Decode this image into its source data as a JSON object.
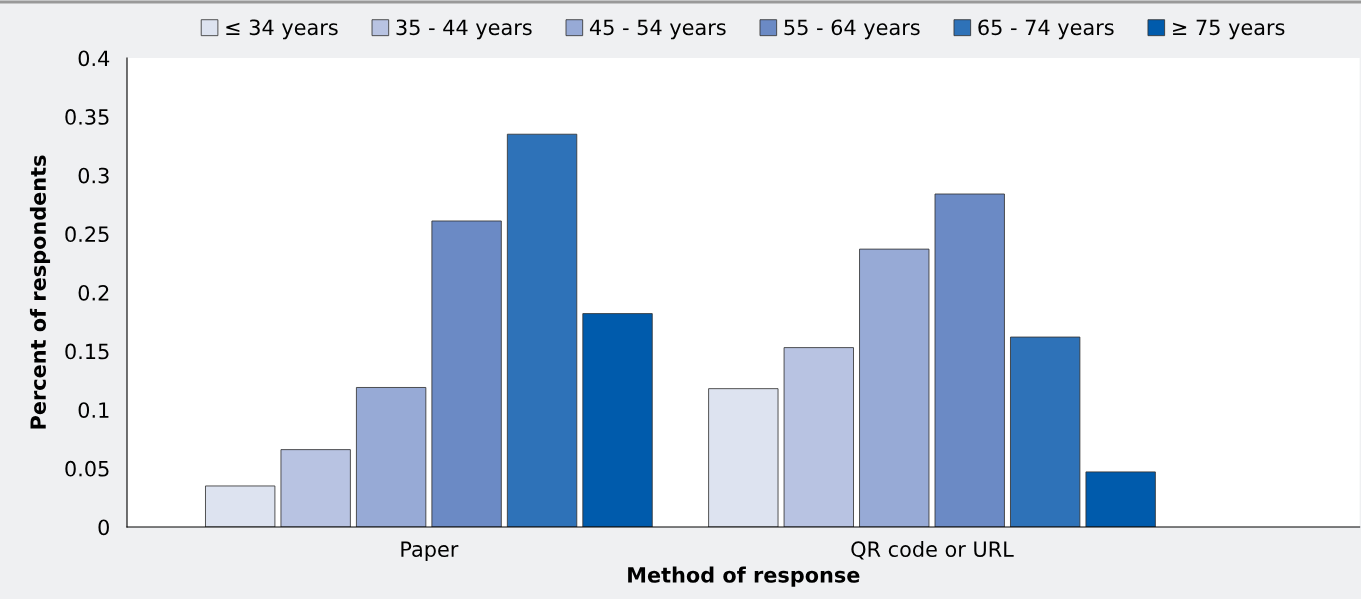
{
  "chart_data": {
    "type": "bar",
    "xlabel": "Method of response",
    "ylabel": "Percent of respondents",
    "categories": [
      "Paper",
      "QR code or URL"
    ],
    "series": [
      {
        "name": "≤ 34 years",
        "color": "#dde3f0",
        "values": [
          0.035,
          0.118
        ]
      },
      {
        "name": "35 - 44 years",
        "color": "#b8c3e2",
        "values": [
          0.066,
          0.153
        ]
      },
      {
        "name": "45 - 54 years",
        "color": "#97aad6",
        "values": [
          0.119,
          0.237
        ]
      },
      {
        "name": "55 - 64 years",
        "color": "#6b8ac5",
        "values": [
          0.261,
          0.284
        ]
      },
      {
        "name": "65 - 74 years",
        "color": "#2e72b8",
        "values": [
          0.335,
          0.162
        ]
      },
      {
        "name": "≥ 75 years",
        "color": "#005bac",
        "values": [
          0.182,
          0.047
        ]
      }
    ],
    "ylim": [
      0,
      0.4
    ],
    "yticks": [
      0,
      0.05,
      0.1,
      0.15,
      0.2,
      0.25,
      0.3,
      0.35,
      0.4
    ],
    "grid": false,
    "legend": "top"
  }
}
